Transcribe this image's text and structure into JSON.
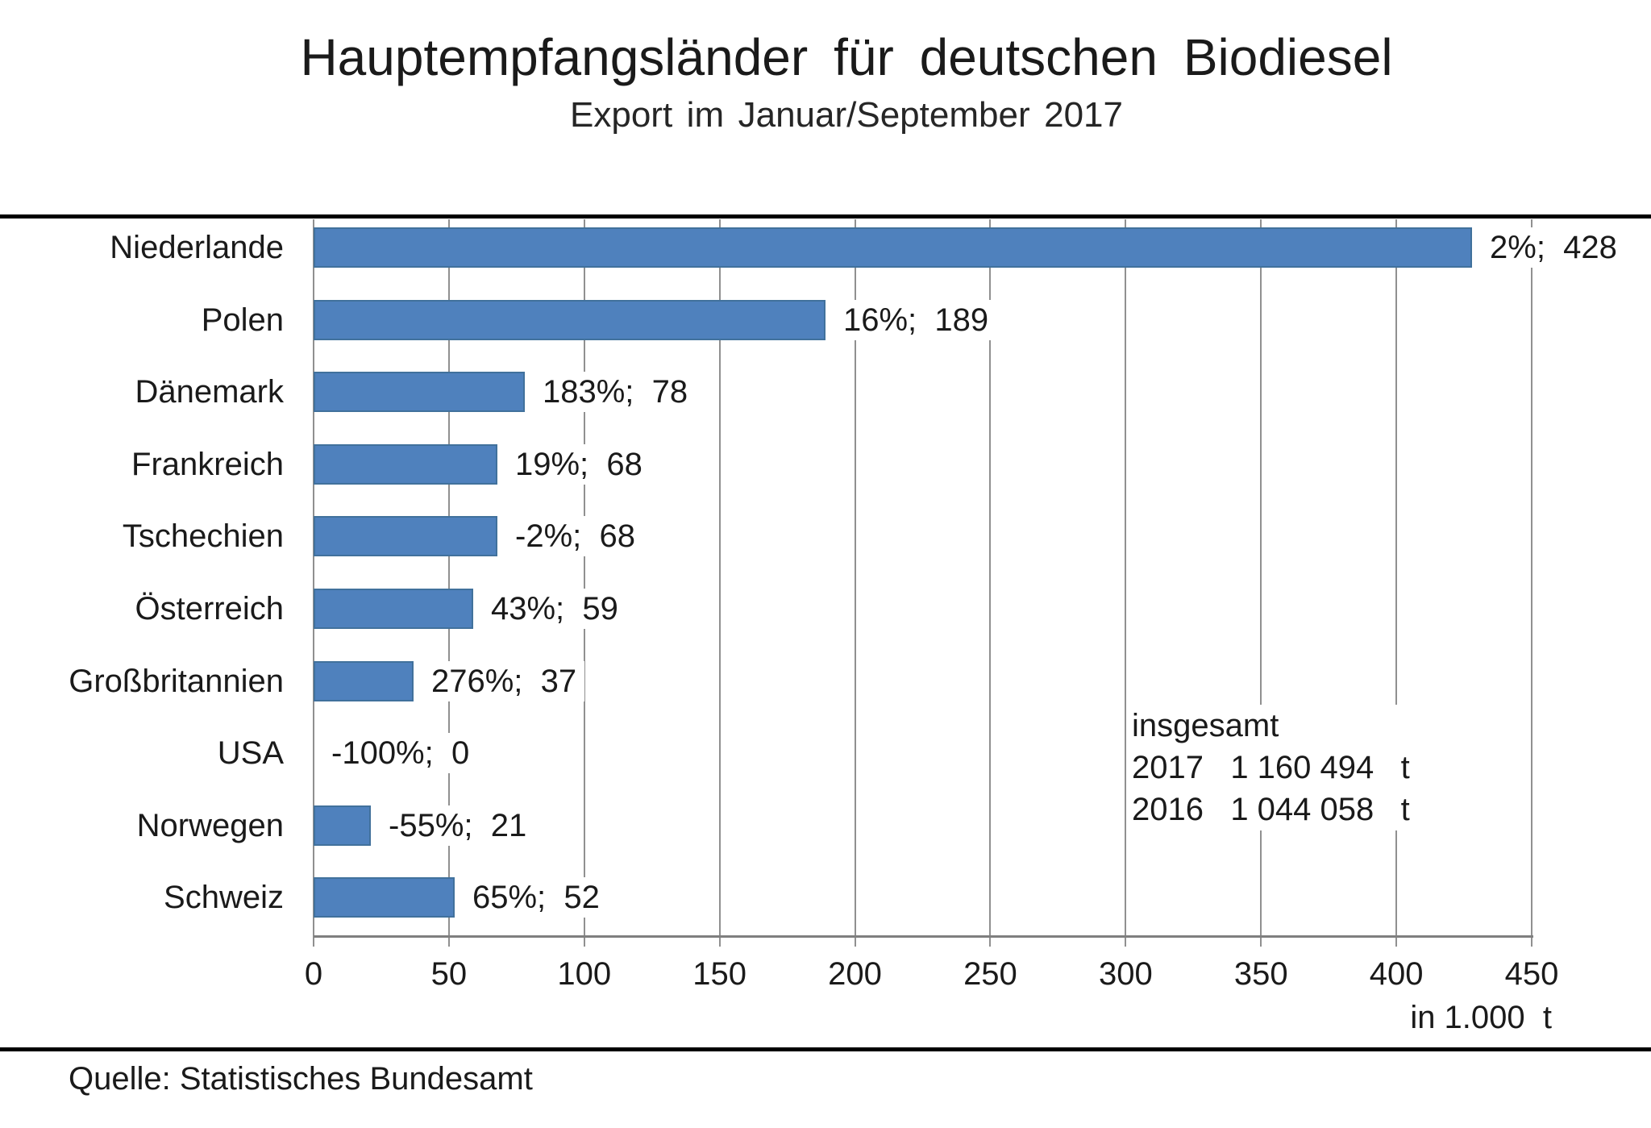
{
  "title": "Hauptempfangsländer für deutschen Biodiesel",
  "subtitle": "Export im Januar/September 2017",
  "source": "Quelle: Statistisches Bundesamt",
  "totals": {
    "heading": "insgesamt",
    "lines": [
      "2017   1 160 494   t",
      "2016   1 044 058   t"
    ]
  },
  "colors": {
    "bar": "#4f81bd",
    "bar_border": "#41719c",
    "gridline": "#909090",
    "axis_line": "#7f7f7f",
    "rule": "#000000",
    "text": "#1a1a1a"
  },
  "chart_data": {
    "type": "bar",
    "orientation": "horizontal",
    "title": "Hauptempfangsländer für deutschen Biodiesel",
    "subtitle": "Export im Januar/September 2017",
    "categories": [
      "Niederlande",
      "Polen",
      "Dänemark",
      "Frankreich",
      "Tschechien",
      "Österreich",
      "Großbritannien",
      "USA",
      "Norwegen",
      "Schweiz"
    ],
    "values": [
      428,
      189,
      78,
      68,
      68,
      59,
      37,
      0,
      21,
      52
    ],
    "percent_change": [
      "2%",
      "16%",
      "183%",
      "19%",
      "-2%",
      "43%",
      "276%",
      "-100%",
      "-55%",
      "65%"
    ],
    "bar_labels": [
      "2%;  428",
      "16%;  189",
      "183%;  78",
      "19%;  68",
      "-2%;  68",
      "43%;  59",
      "276%;  37",
      "-100%;  0",
      "-55%;  21",
      "65%;  52"
    ],
    "xlim": [
      0,
      450
    ],
    "xticks": [
      "0",
      "50",
      "100",
      "150",
      "200",
      "250",
      "300",
      "350",
      "400",
      "450"
    ],
    "xlabel": "in 1.000  t",
    "grid": true,
    "legend": false
  }
}
